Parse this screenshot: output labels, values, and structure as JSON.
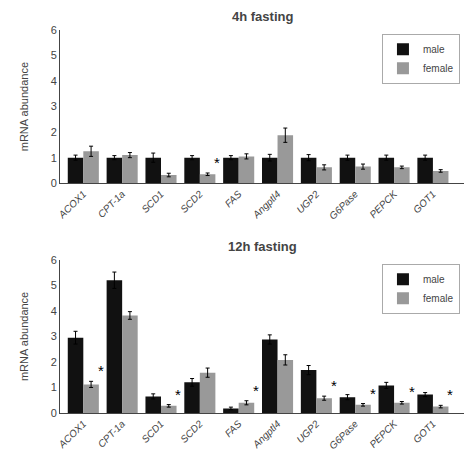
{
  "chart_data": [
    {
      "type": "bar",
      "title": "4h fasting",
      "ylabel": "mRNA abundance",
      "categories": [
        "ACOX1",
        "CPT-1a",
        "SCD1",
        "SCD2",
        "FAS",
        "Angptl4",
        "UGP2",
        "G6Pase",
        "PEPCK",
        "GOT1"
      ],
      "series": [
        {
          "name": "male",
          "color": "#111111",
          "values": [
            1.0,
            1.0,
            1.0,
            1.0,
            1.0,
            1.0,
            1.0,
            1.0,
            1.0,
            1.0
          ],
          "errors": [
            0.1,
            0.08,
            0.18,
            0.08,
            0.08,
            0.13,
            0.12,
            0.1,
            0.1,
            0.1
          ]
        },
        {
          "name": "female",
          "color": "#999999",
          "values": [
            1.25,
            1.1,
            0.32,
            0.35,
            1.05,
            1.88,
            0.62,
            0.65,
            0.62,
            0.48
          ],
          "errors": [
            0.2,
            0.1,
            0.07,
            0.05,
            0.1,
            0.28,
            0.1,
            0.1,
            0.05,
            0.05
          ]
        }
      ],
      "ylim": [
        0,
        6
      ],
      "yticks": [
        0,
        1,
        2,
        3,
        4,
        5,
        6
      ],
      "grid": false,
      "legend": "upper right",
      "annotations": [
        {
          "text": "*",
          "category": "SCD2",
          "series": "female"
        }
      ]
    },
    {
      "type": "bar",
      "title": "12h fasting",
      "ylabel": "mRNA abundance",
      "categories": [
        "ACOX1",
        "CPT-1a",
        "SCD1",
        "SCD2",
        "FAS",
        "Angptl4",
        "UGP2",
        "G6Pase",
        "PEPCK",
        "GOT1"
      ],
      "series": [
        {
          "name": "male",
          "color": "#111111",
          "values": [
            2.95,
            5.2,
            0.65,
            1.2,
            0.18,
            2.88,
            1.68,
            0.62,
            1.08,
            0.72
          ],
          "errors": [
            0.25,
            0.32,
            0.1,
            0.15,
            0.05,
            0.18,
            0.18,
            0.1,
            0.12,
            0.08
          ]
        },
        {
          "name": "female",
          "color": "#999999",
          "values": [
            1.12,
            3.82,
            0.28,
            1.58,
            0.4,
            2.08,
            0.58,
            0.32,
            0.4,
            0.25
          ],
          "errors": [
            0.12,
            0.15,
            0.05,
            0.18,
            0.08,
            0.2,
            0.08,
            0.05,
            0.05,
            0.05
          ]
        }
      ],
      "ylim": [
        0,
        6
      ],
      "yticks": [
        0,
        1,
        2,
        3,
        4,
        5,
        6
      ],
      "grid": false,
      "legend": "upper right",
      "annotations": [
        {
          "text": "*",
          "category": "ACOX1",
          "series": "female"
        },
        {
          "text": "*",
          "category": "SCD1",
          "series": "female"
        },
        {
          "text": "*",
          "category": "FAS",
          "series": "female"
        },
        {
          "text": "*",
          "category": "UGP2",
          "series": "female"
        },
        {
          "text": "*",
          "category": "G6Pase",
          "series": "female"
        },
        {
          "text": "*",
          "category": "PEPCK",
          "series": "female"
        },
        {
          "text": "*",
          "category": "GOT1",
          "series": "female"
        }
      ]
    }
  ]
}
